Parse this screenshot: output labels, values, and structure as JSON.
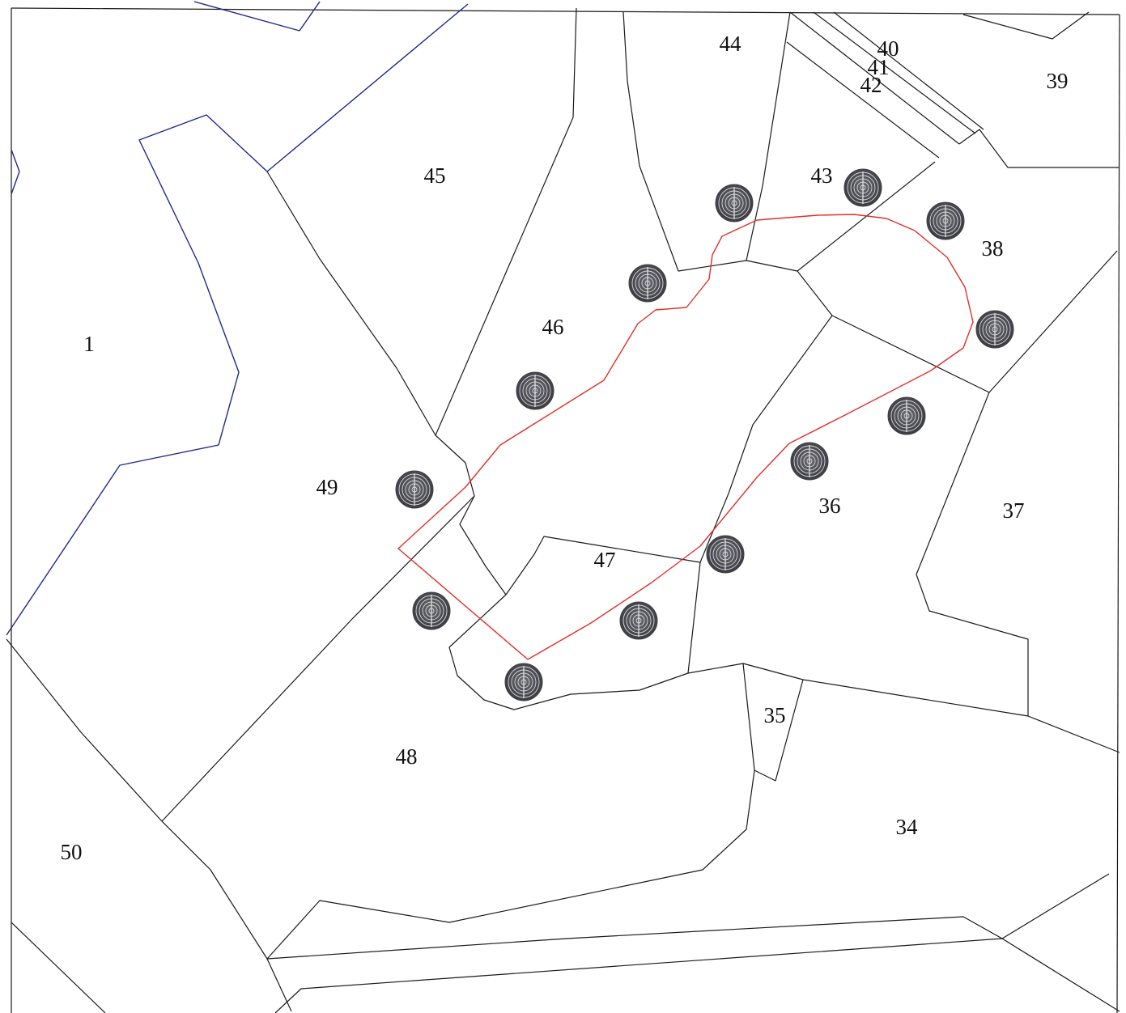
{
  "map": {
    "colors": {
      "parcel_border": "#1a1a1a",
      "water_boundary": "#1f2a8c",
      "project_boundary": "#e0302a",
      "marker_fill": "#4a4a52",
      "background": "#ffffff"
    },
    "marker_icon": "concentric-target-icon",
    "parcels": [
      {
        "id": "p1",
        "label": "1"
      },
      {
        "id": "p34",
        "label": "34"
      },
      {
        "id": "p35",
        "label": "35"
      },
      {
        "id": "p36",
        "label": "36"
      },
      {
        "id": "p37",
        "label": "37"
      },
      {
        "id": "p38",
        "label": "38"
      },
      {
        "id": "p39",
        "label": "39"
      },
      {
        "id": "p40",
        "label": "40"
      },
      {
        "id": "p41",
        "label": "41"
      },
      {
        "id": "p42",
        "label": "42"
      },
      {
        "id": "p43",
        "label": "43"
      },
      {
        "id": "p44",
        "label": "44"
      },
      {
        "id": "p45",
        "label": "45"
      },
      {
        "id": "p46",
        "label": "46"
      },
      {
        "id": "p47",
        "label": "47"
      },
      {
        "id": "p48",
        "label": "48"
      },
      {
        "id": "p49",
        "label": "49"
      },
      {
        "id": "p50",
        "label": "50"
      }
    ]
  }
}
